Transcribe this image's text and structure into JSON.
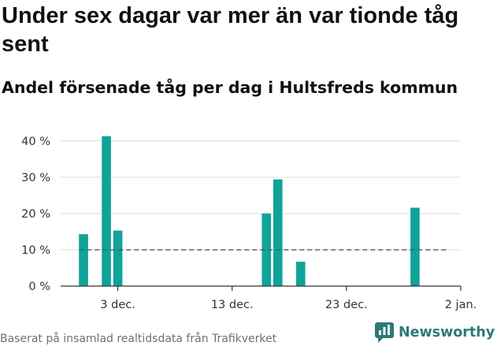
{
  "title": "Under sex dagar var mer än var tionde tåg sent",
  "subtitle": "Andel försenade tåg per dag i Hultsfreds kommun",
  "footer": "Baserat på insamlad realtidsdata från Trafikverket",
  "brand": {
    "name": "Newsworthy",
    "color": "#2b7a78"
  },
  "chart_data": {
    "type": "bar",
    "title": "Under sex dagar var mer än var tionde tåg sent",
    "subtitle": "Andel försenade tåg per dag i Hultsfreds kommun",
    "x_type": "date",
    "x_ticks": [
      {
        "label": "3 dec.",
        "date": "2022-12-03"
      },
      {
        "label": "13 dec.",
        "date": "2022-12-13"
      },
      {
        "label": "23 dec.",
        "date": "2022-12-23"
      },
      {
        "label": "2 jan.",
        "date": "2023-01-02"
      }
    ],
    "xlim": [
      "2022-11-28",
      "2023-01-02"
    ],
    "y_ticks": [
      {
        "label": "0 %",
        "value": 0
      },
      {
        "label": "10 %",
        "value": 10
      },
      {
        "label": "20 %",
        "value": 20
      },
      {
        "label": "30 %",
        "value": 30
      },
      {
        "label": "40 %",
        "value": 40
      }
    ],
    "ylim": [
      0,
      43
    ],
    "y_unit": "%",
    "grid": true,
    "bar_color": "#0fa39a",
    "bars": [
      {
        "date": "2022-11-30",
        "value": 14.3
      },
      {
        "date": "2022-12-02",
        "value": 41.3
      },
      {
        "date": "2022-12-03",
        "value": 15.3
      },
      {
        "date": "2022-12-16",
        "value": 20.0
      },
      {
        "date": "2022-12-17",
        "value": 29.4
      },
      {
        "date": "2022-12-19",
        "value": 6.7
      },
      {
        "date": "2022-12-29",
        "value": 21.6
      }
    ],
    "reference_line": {
      "value": 10,
      "style": "dashed",
      "from": "2022-11-30",
      "to": "2023-01-01"
    }
  }
}
